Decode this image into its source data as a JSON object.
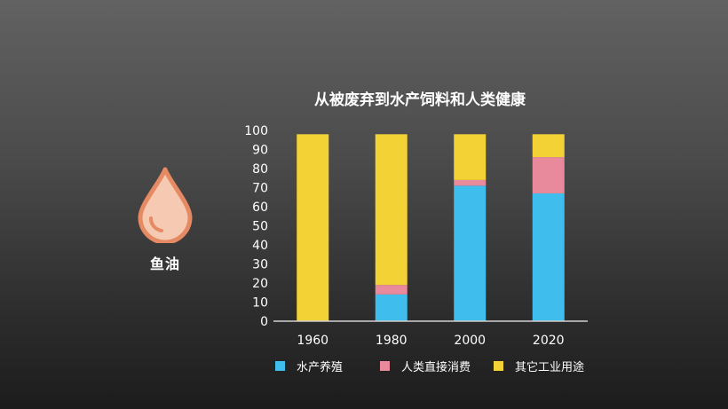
{
  "side_label": "鱼油",
  "colors": {
    "aquaculture": "#3FBDED",
    "human": "#E88A9C",
    "industrial": "#F2D234",
    "drop_fill": "#F6C9B2",
    "drop_stroke": "#E58A62"
  },
  "icon": "oil-drop-icon",
  "chart_data": {
    "type": "bar",
    "stacked": true,
    "title": "从被废弃到水产饲料和人类健康",
    "categories": [
      "1960",
      "1980",
      "2000",
      "2020"
    ],
    "series": [
      {
        "name": "水产养殖",
        "values": [
          0,
          14,
          71,
          67
        ]
      },
      {
        "name": "人类直接消费",
        "values": [
          0,
          5,
          3,
          19
        ]
      },
      {
        "name": "其它工业用途",
        "values": [
          98,
          79,
          24,
          12
        ]
      }
    ],
    "y_ticks": [
      "0",
      "10",
      "20",
      "30",
      "40",
      "50",
      "60",
      "70",
      "80",
      "90",
      "100"
    ],
    "ylim": [
      0,
      100
    ],
    "grid": false,
    "legend_position": "bottom"
  }
}
